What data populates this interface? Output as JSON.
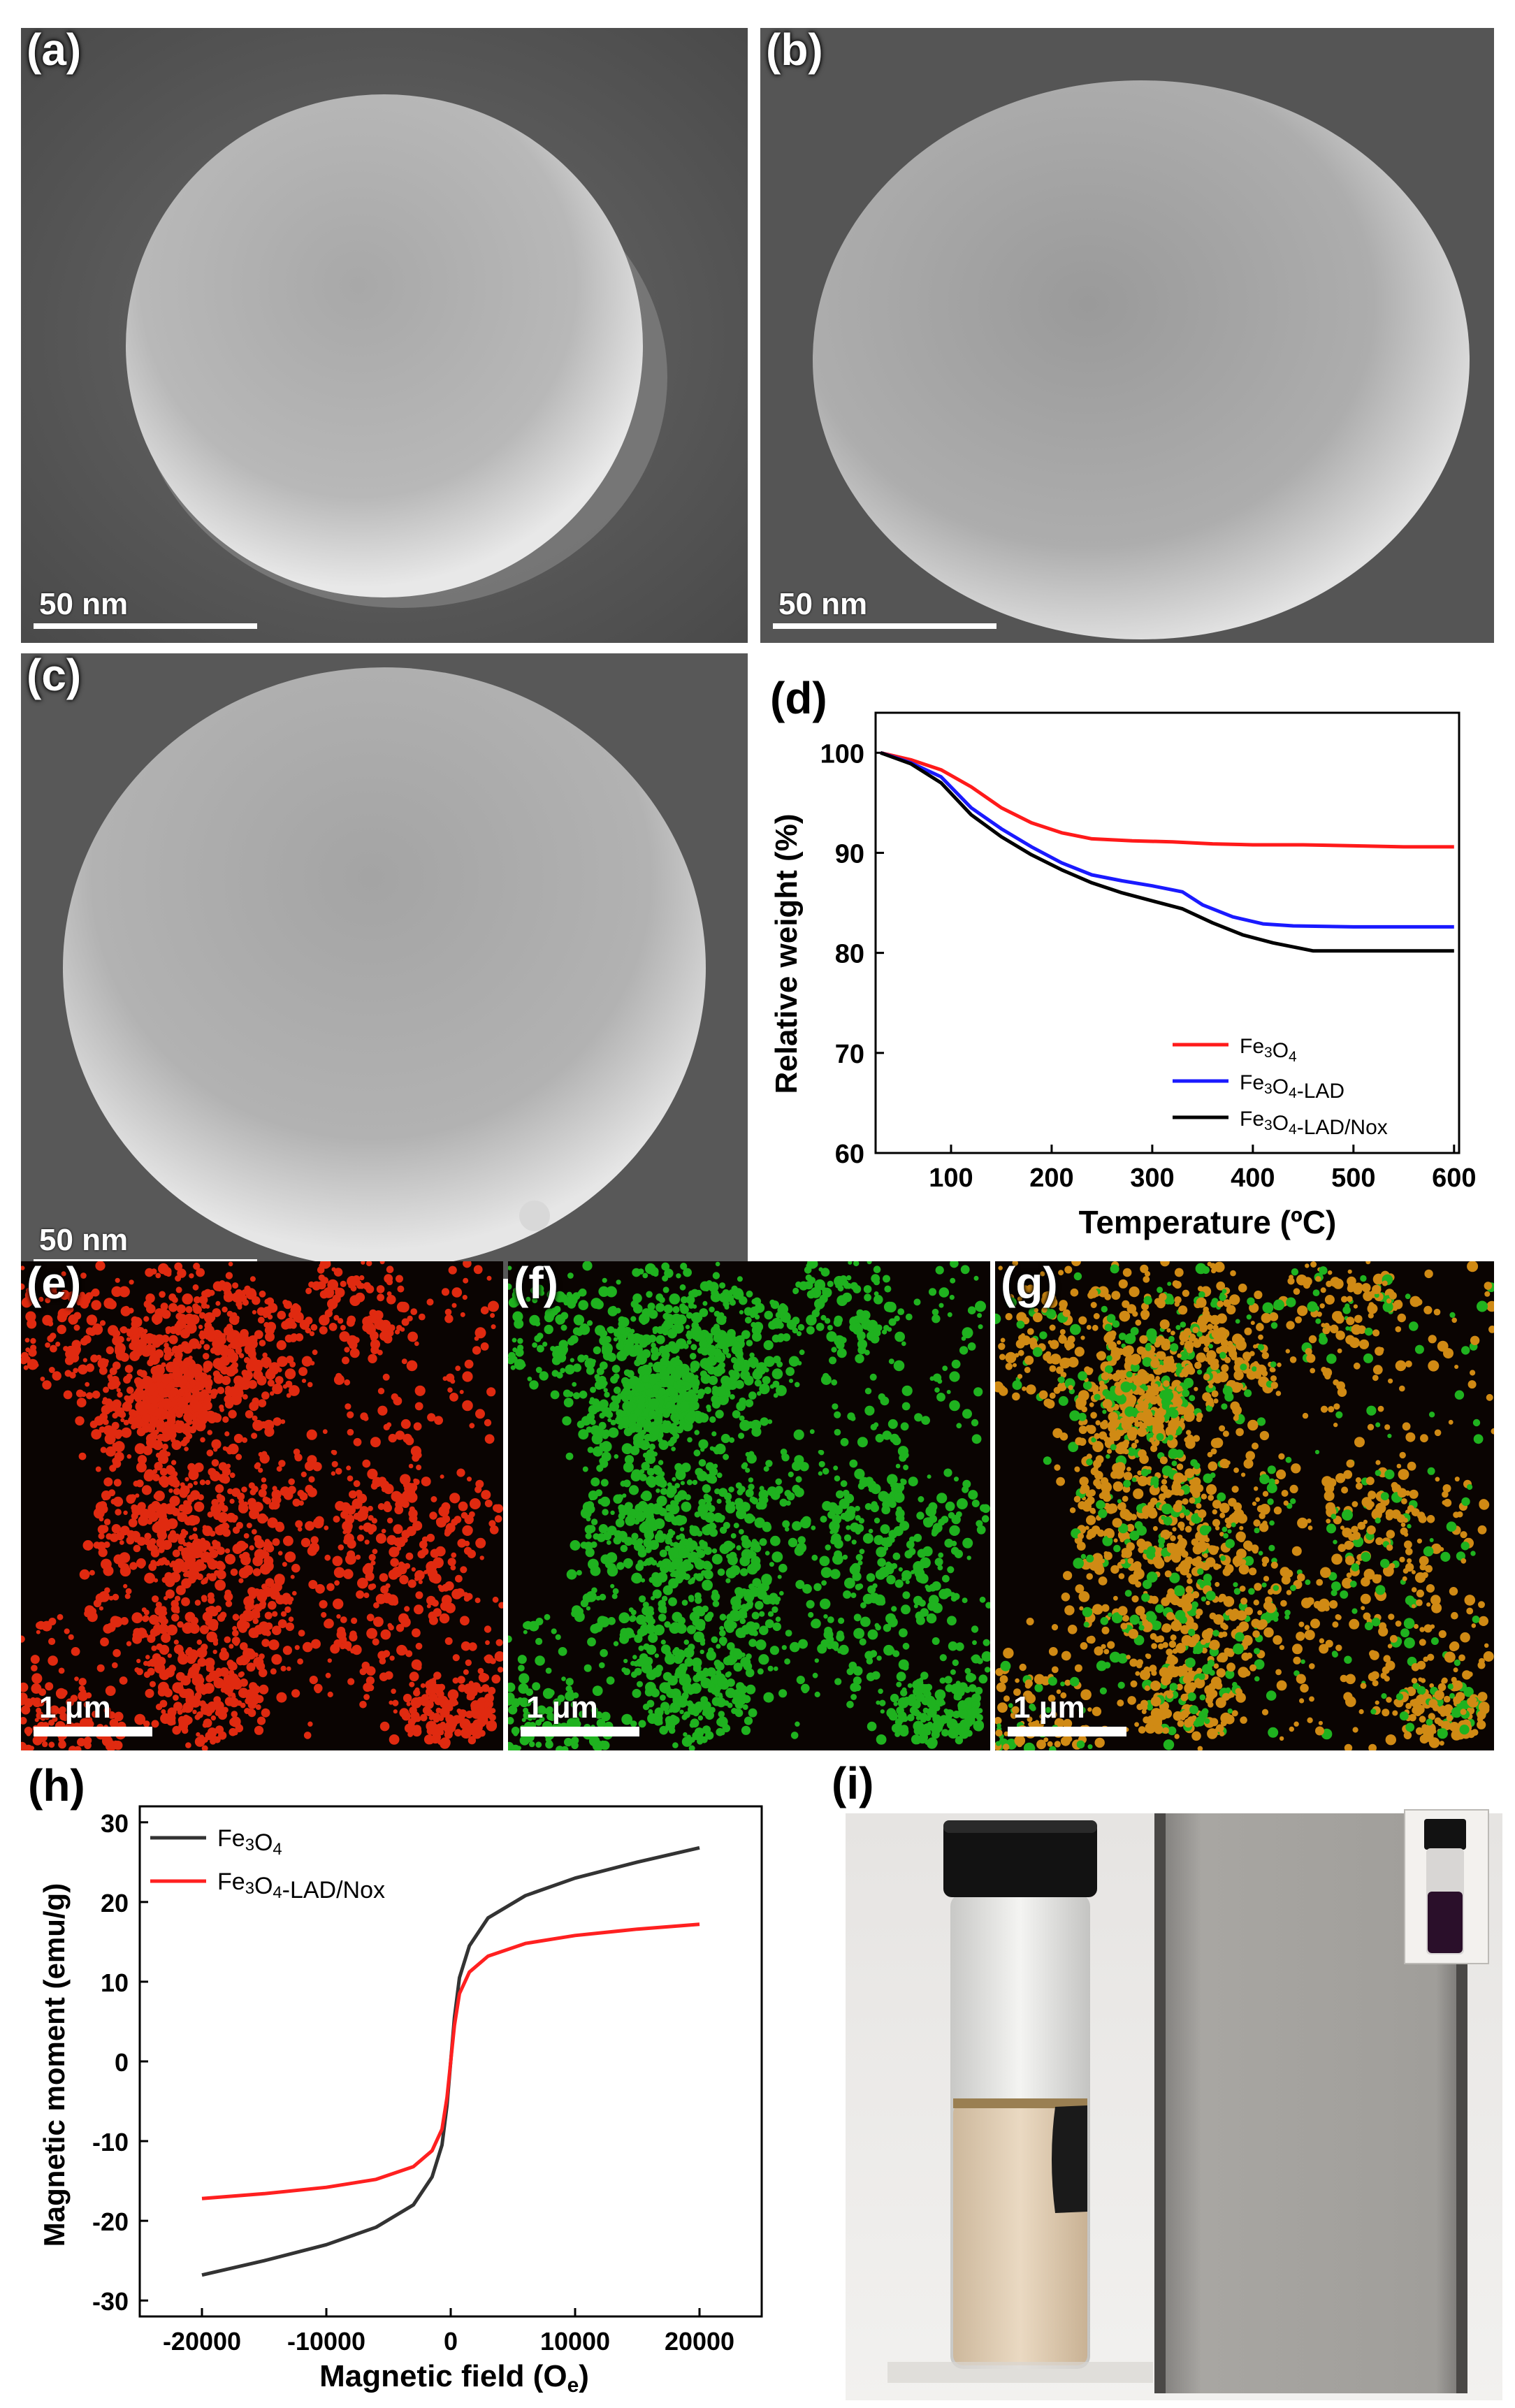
{
  "panels": {
    "a": {
      "label": "(a)",
      "scale": "50 nm"
    },
    "b": {
      "label": "(b)",
      "scale": "50 nm"
    },
    "c": {
      "label": "(c)",
      "scale": "50 nm"
    },
    "e": {
      "label": "(e)",
      "scale": "1 μm",
      "color": "#e02a10"
    },
    "f": {
      "label": "(f)",
      "scale": "1 μm",
      "color": "#1fb21f"
    },
    "g": {
      "label": "(g)",
      "scale": "1 μm",
      "color": "#d08a14"
    },
    "i": {
      "label": "(i)"
    }
  },
  "chart_data": [
    {
      "panel_label": "(d)",
      "type": "line",
      "xlabel": "Temperature (ºC)",
      "ylabel": "Relative weight (%)",
      "xlim": [
        25,
        605
      ],
      "ylim": [
        60,
        104
      ],
      "xticks": [
        100,
        200,
        300,
        400,
        500,
        600
      ],
      "yticks": [
        60,
        70,
        80,
        90,
        100
      ],
      "legend_position": "bottom-right",
      "series": [
        {
          "name": "Fe3O4",
          "color": "#ff1a1a",
          "x": [
            30,
            60,
            90,
            120,
            150,
            180,
            210,
            240,
            280,
            320,
            360,
            400,
            450,
            500,
            550,
            600
          ],
          "y": [
            100,
            99.3,
            98.3,
            96.6,
            94.5,
            93.0,
            92.0,
            91.4,
            91.2,
            91.1,
            90.9,
            90.8,
            90.8,
            90.7,
            90.6,
            90.6
          ]
        },
        {
          "name": "Fe3O4-LAD",
          "color": "#1a1aff",
          "x": [
            30,
            60,
            90,
            120,
            150,
            180,
            210,
            240,
            270,
            300,
            330,
            350,
            380,
            410,
            440,
            500,
            550,
            600
          ],
          "y": [
            100,
            99.0,
            97.6,
            94.5,
            92.4,
            90.6,
            89.0,
            87.8,
            87.2,
            86.7,
            86.1,
            84.8,
            83.6,
            82.9,
            82.7,
            82.6,
            82.6,
            82.6
          ]
        },
        {
          "name": "Fe3O4-LAD/Nox",
          "color": "#000000",
          "x": [
            30,
            60,
            90,
            120,
            150,
            180,
            210,
            240,
            270,
            300,
            330,
            360,
            390,
            420,
            460,
            500,
            550,
            600
          ],
          "y": [
            100,
            98.9,
            97.0,
            93.8,
            91.6,
            89.8,
            88.3,
            87.0,
            86.0,
            85.2,
            84.4,
            83.0,
            81.8,
            81.0,
            80.2,
            80.2,
            80.2,
            80.2
          ]
        }
      ]
    },
    {
      "panel_label": "(h)",
      "type": "line",
      "xlabel": "Magnetic field (Oe)",
      "ylabel": "Magnetic moment (emu/g)",
      "xlim": [
        -25000,
        25000
      ],
      "ylim": [
        -32,
        32
      ],
      "xticks": [
        -20000,
        -10000,
        0,
        10000,
        20000
      ],
      "yticks": [
        -30,
        -20,
        -10,
        0,
        10,
        20,
        30
      ],
      "legend_position": "top-left",
      "series": [
        {
          "name": "Fe3O4",
          "color": "#333333",
          "x": [
            -20000,
            -15000,
            -10000,
            -6000,
            -3000,
            -1500,
            -700,
            -300,
            0,
            300,
            700,
            1500,
            3000,
            6000,
            10000,
            15000,
            20000
          ],
          "y": [
            -26.8,
            -25.0,
            -23.0,
            -20.8,
            -18.0,
            -14.5,
            -10.5,
            -5.5,
            0,
            5.5,
            10.5,
            14.5,
            18.0,
            20.8,
            23.0,
            25.0,
            26.8
          ]
        },
        {
          "name": "Fe3O4-LAD/Nox",
          "color": "#ff2020",
          "x": [
            -20000,
            -15000,
            -10000,
            -6000,
            -3000,
            -1500,
            -700,
            -300,
            0,
            300,
            700,
            1500,
            3000,
            6000,
            10000,
            15000,
            20000
          ],
          "y": [
            -17.2,
            -16.6,
            -15.8,
            -14.8,
            -13.2,
            -11.2,
            -8.5,
            -4.5,
            0,
            4.5,
            8.5,
            11.2,
            13.2,
            14.8,
            15.8,
            16.6,
            17.2
          ]
        }
      ]
    }
  ]
}
